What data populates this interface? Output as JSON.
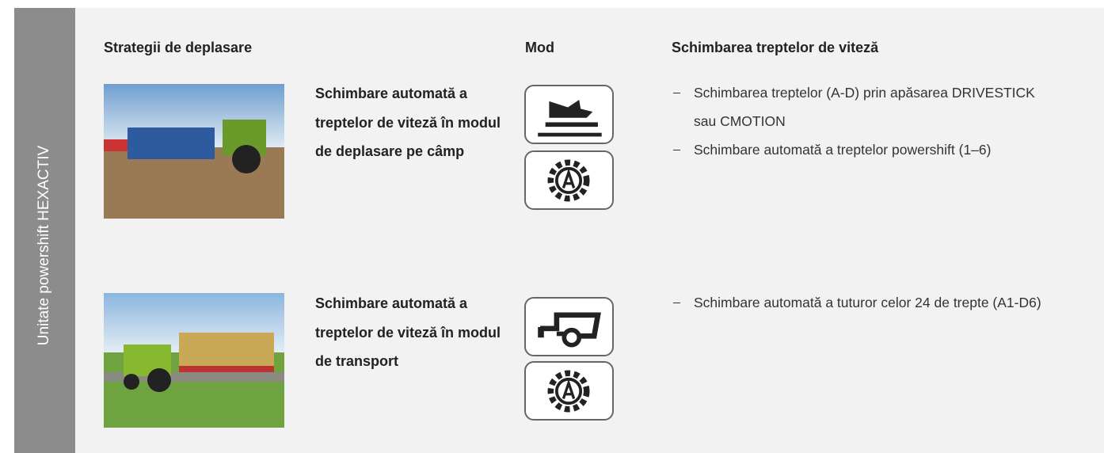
{
  "side_label": "Unitate powershift HEXACTIV",
  "headers": [
    "Strategii de deplasare",
    "Mod",
    "Schimbarea treptelor de viteză"
  ],
  "rows": [
    {
      "strategy": "Schimbare automată a treptelor de viteză în modul de deplasare pe câmp",
      "bullets": [
        "Schimbarea treptelor (A-D) prin apăsarea DRIVESTICK sau CMOTION",
        "Schimbare automată a treptelor powershift (1–6)"
      ]
    },
    {
      "strategy": "Schimbare automată a treptelor de viteză în modul de transport",
      "bullets": [
        "Schimbare automată a tuturor celor 24 de trepte (A1-D6)"
      ]
    }
  ]
}
